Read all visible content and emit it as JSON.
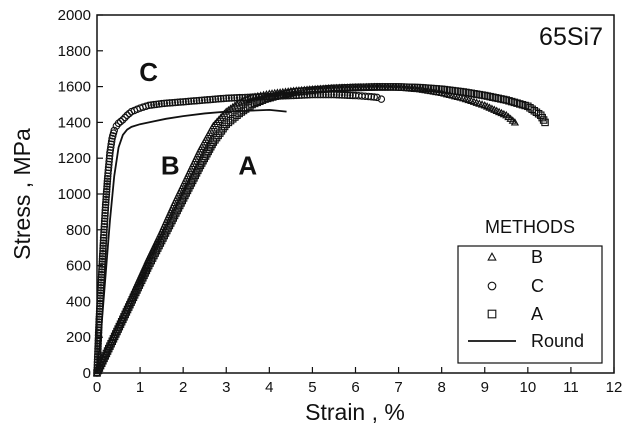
{
  "chart_data": {
    "type": "scatter",
    "title": "",
    "panel_label": "65Si7",
    "xlabel": "Strain , %",
    "ylabel": "Stress , MPa",
    "xlim": [
      0,
      12
    ],
    "ylim": [
      0,
      2000
    ],
    "x_ticks": [
      0,
      1,
      2,
      3,
      4,
      5,
      6,
      7,
      8,
      9,
      10,
      11,
      12
    ],
    "y_ticks": [
      0,
      200,
      400,
      600,
      800,
      1000,
      1200,
      1400,
      1600,
      1800,
      2000
    ],
    "grid": false,
    "legend": {
      "title": "METHODS",
      "position": "bottom-right",
      "entries": [
        {
          "label": "B",
          "marker": "triangle"
        },
        {
          "label": "C",
          "marker": "circle"
        },
        {
          "label": "A",
          "marker": "square"
        },
        {
          "label": "Round",
          "marker": "line"
        }
      ]
    },
    "annotations": [
      {
        "text": "C",
        "x": 1.2,
        "y": 1630
      },
      {
        "text": "B",
        "x": 1.7,
        "y": 1110
      },
      {
        "text": "A",
        "x": 3.5,
        "y": 1110
      }
    ],
    "series": [
      {
        "name": "B",
        "marker": "triangle",
        "x": [
          0,
          0.3,
          0.6,
          0.9,
          1.2,
          1.5,
          1.8,
          2.1,
          2.4,
          2.7,
          3.0,
          3.3,
          3.6,
          4.0,
          4.5,
          5.0,
          5.5,
          6.0,
          6.5,
          7.0,
          7.5,
          8.0,
          8.5,
          9.0,
          9.5,
          9.7
        ],
        "y": [
          0,
          160,
          320,
          480,
          640,
          790,
          950,
          1100,
          1250,
          1380,
          1460,
          1510,
          1540,
          1560,
          1575,
          1585,
          1592,
          1596,
          1598,
          1595,
          1585,
          1565,
          1535,
          1495,
          1440,
          1400
        ]
      },
      {
        "name": "C",
        "marker": "circle",
        "x": [
          0,
          0.05,
          0.1,
          0.15,
          0.2,
          0.25,
          0.3,
          0.35,
          0.4,
          0.45,
          0.5,
          0.55,
          0.6,
          0.7,
          0.8,
          1.0,
          1.2,
          1.5,
          2.0,
          2.5,
          3.0,
          3.5,
          4.0,
          4.5,
          5.0,
          5.5,
          6.0,
          6.3,
          6.5,
          6.6
        ],
        "y": [
          0,
          300,
          520,
          740,
          940,
          1100,
          1230,
          1310,
          1355,
          1380,
          1395,
          1405,
          1415,
          1440,
          1460,
          1480,
          1495,
          1505,
          1515,
          1525,
          1535,
          1540,
          1545,
          1550,
          1555,
          1555,
          1550,
          1545,
          1540,
          1530
        ]
      },
      {
        "name": "A",
        "marker": "square",
        "x": [
          0,
          0.3,
          0.6,
          0.9,
          1.2,
          1.5,
          1.8,
          2.1,
          2.4,
          2.7,
          3.0,
          3.3,
          3.6,
          3.9,
          4.2,
          4.6,
          5.0,
          5.5,
          6.0,
          6.5,
          7.0,
          7.5,
          8.0,
          8.5,
          9.0,
          9.5,
          10.0,
          10.3,
          10.4
        ],
        "y": [
          0,
          150,
          300,
          450,
          600,
          740,
          880,
          1020,
          1160,
          1290,
          1390,
          1450,
          1500,
          1530,
          1550,
          1570,
          1580,
          1590,
          1595,
          1598,
          1598,
          1594,
          1585,
          1570,
          1550,
          1525,
          1490,
          1440,
          1400
        ]
      },
      {
        "name": "Round",
        "marker": "line",
        "x": [
          0,
          0.1,
          0.2,
          0.3,
          0.4,
          0.5,
          0.6,
          0.7,
          0.8,
          1.0,
          1.3,
          1.6,
          2.0,
          2.5,
          3.0,
          3.5,
          4.0,
          4.4
        ],
        "y": [
          0,
          250,
          550,
          850,
          1100,
          1260,
          1330,
          1360,
          1375,
          1390,
          1405,
          1420,
          1435,
          1450,
          1460,
          1465,
          1470,
          1460
        ]
      }
    ]
  }
}
